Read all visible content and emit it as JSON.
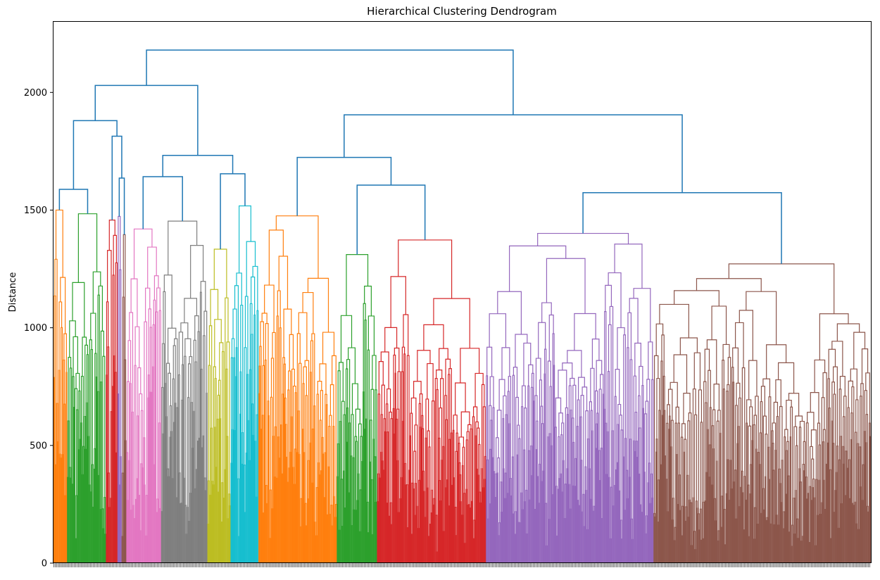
{
  "chart_data": {
    "type": "dendrogram",
    "title": "Hierarchical Clustering Dendrogram",
    "xlabel": "",
    "ylabel": "Distance",
    "ylim": [
      0,
      2300
    ],
    "yticks": [
      0,
      500,
      1000,
      1500,
      2000
    ],
    "root_height": 2180,
    "link_color": "#1f77b4",
    "cluster_colors": [
      "#ff7f0e",
      "#2ca02c",
      "#d62728",
      "#9467bd",
      "#8c564b",
      "#e377c2",
      "#7f7f7f",
      "#bcbd22",
      "#17becf"
    ],
    "color_threshold": 1540,
    "grid": false,
    "legend": "none"
  }
}
